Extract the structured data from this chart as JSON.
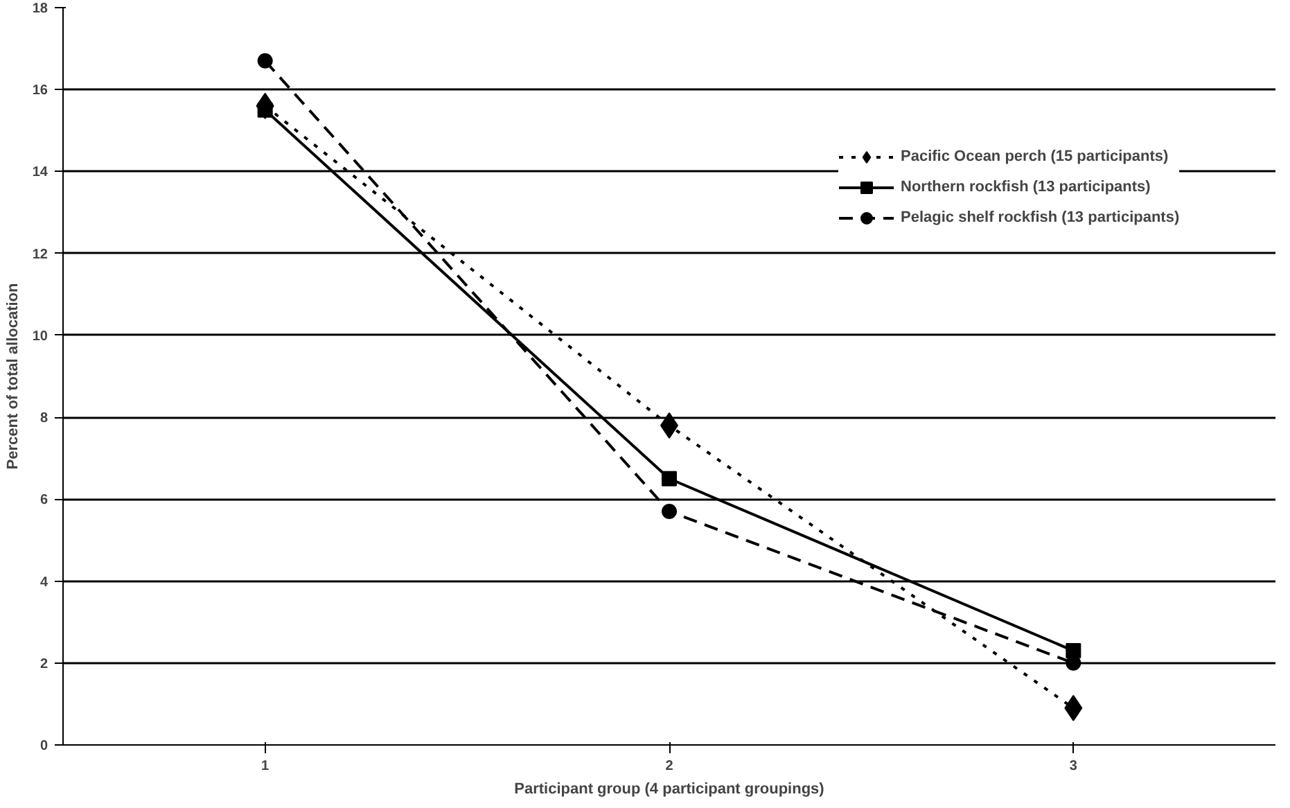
{
  "chart_data": {
    "type": "line",
    "xlabel": "Participant group (4 participant groupings)",
    "ylabel": "Percent of total allocation",
    "categories": [
      "1",
      "2",
      "3"
    ],
    "ylim": [
      0,
      18
    ],
    "yticks": [
      0,
      2,
      4,
      6,
      8,
      10,
      12,
      14,
      16,
      18
    ],
    "grid": "y",
    "legend": "top right",
    "series": [
      {
        "name": "Pacific Ocean perch (15 participants)",
        "color": "#000000",
        "values": [
          15.6,
          7.8,
          0.9
        ],
        "marker": "diamond",
        "line_style": "dotted"
      },
      {
        "name": "Northern rockfish (13 participants)",
        "color": "#000000",
        "values": [
          15.5,
          6.5,
          2.3
        ],
        "marker": "square",
        "line_style": "solid"
      },
      {
        "name": "Pelagic shelf rockfish (13 participants)",
        "color": "#000000",
        "values": [
          16.7,
          5.7,
          2.0
        ],
        "marker": "circle",
        "line_style": "dashed"
      }
    ]
  }
}
